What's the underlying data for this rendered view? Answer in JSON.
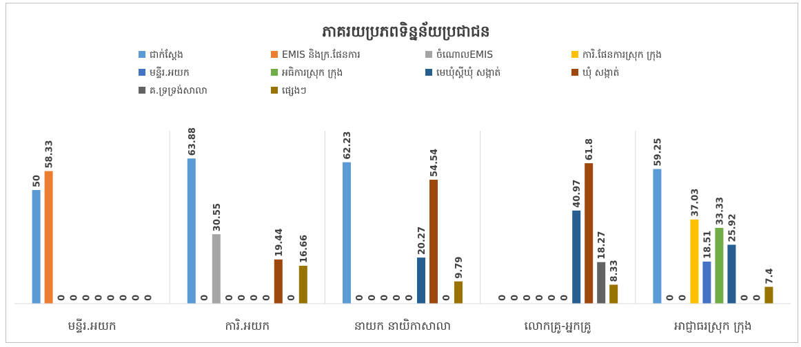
{
  "chart_data": {
    "type": "bar",
    "title": "ភាគរយប្រភពទិន្នន័យប្រជាជន",
    "categories": [
      "មន្ទីរ.អយក",
      "ការិ.អយក",
      "នាយក នាយិកាសាលា",
      "លោកគ្រូ-អ្នកគ្រូ",
      "អាជ្ញាធរស្រុក ក្រុង"
    ],
    "series": [
      {
        "name": "ជាក់ស្តែង",
        "color": "#5b9bd5",
        "values": [
          50,
          63.88,
          62.23,
          0,
          59.25
        ]
      },
      {
        "name": "EMIS និងក្រ.ផែនការ",
        "color": "#ed7d31",
        "values": [
          58.33,
          0,
          0,
          0,
          0
        ]
      },
      {
        "name": "ចំណោលEMIS",
        "color": "#a5a5a5",
        "values": [
          0,
          30.55,
          0,
          0,
          0
        ]
      },
      {
        "name": "ការិ.ផែនការស្រុក ក្រុង",
        "color": "#ffc000",
        "values": [
          0,
          0,
          0,
          0,
          37.03
        ]
      },
      {
        "name": "មន្ទីរ.អយក",
        "color": "#4472c4",
        "values": [
          0,
          0,
          0,
          0,
          18.51
        ]
      },
      {
        "name": "អធិការស្រុក ក្រុង",
        "color": "#70ad47",
        "values": [
          0,
          0,
          0,
          0,
          33.33
        ]
      },
      {
        "name": "មេឃុំស្តីឃុំ សង្កាត់",
        "color": "#255e91",
        "values": [
          0,
          0,
          20.27,
          40.97,
          25.92
        ]
      },
      {
        "name": "ឃុំ សង្កាត់",
        "color": "#9e480e",
        "values": [
          0,
          19.44,
          54.54,
          61.8,
          0
        ]
      },
      {
        "name": "គ.ទ្រទ្រង់សាលា",
        "color": "#636363",
        "values": [
          0,
          0,
          0,
          18.27,
          0
        ]
      },
      {
        "name": "ផ្សេងៗ",
        "color": "#997300",
        "values": [
          0,
          16.66,
          9.79,
          8.33,
          7.4
        ]
      }
    ],
    "ylim": [
      0,
      70
    ],
    "grid": false,
    "legend_position": "top"
  }
}
